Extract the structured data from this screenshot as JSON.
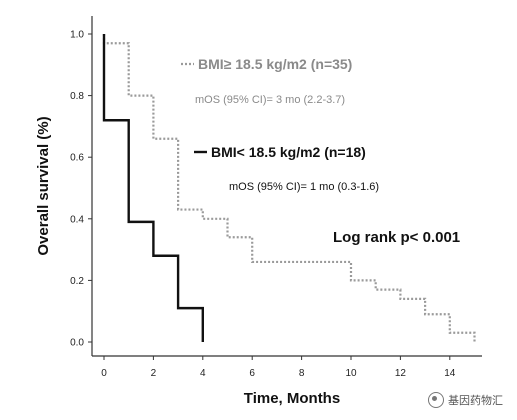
{
  "chart_data": {
    "type": "line",
    "xlabel": "Time, Months",
    "ylabel": "Overall survival (%)",
    "xlim": [
      0,
      15.2
    ],
    "ylim": [
      0,
      1.0
    ],
    "x_ticks": [
      0,
      2,
      4,
      6,
      8,
      10,
      12,
      14
    ],
    "y_ticks": [
      "0.0",
      "0.2",
      "0.4",
      "0.6",
      "0.8",
      "1.0"
    ],
    "grid": false,
    "series": [
      {
        "name": "BMI≥ 18.5 kg/m2 (n=35)",
        "style": "dotted",
        "color": "#9a9a9a",
        "x": [
          0,
          1,
          2,
          3,
          4,
          5,
          6,
          10,
          11,
          12,
          13,
          14,
          15
        ],
        "y": [
          0.97,
          0.8,
          0.66,
          0.43,
          0.4,
          0.34,
          0.26,
          0.2,
          0.17,
          0.14,
          0.09,
          0.03,
          0.0
        ]
      },
      {
        "name": "BMI< 18.5 kg/m2 (n=18)",
        "style": "solid",
        "color": "#111111",
        "x": [
          0,
          1,
          2,
          3,
          4
        ],
        "y": [
          0.72,
          0.39,
          0.28,
          0.11,
          0.0
        ]
      }
    ],
    "annotations": {
      "mos_high": "mOS (95% CI)= 3 mo (2.2-3.7)",
      "mos_low": "mOS (95% CI)= 1 mo (0.3-1.6)",
      "pvalue": "Log rank p< 0.001"
    }
  },
  "watermark": "基因药物汇"
}
